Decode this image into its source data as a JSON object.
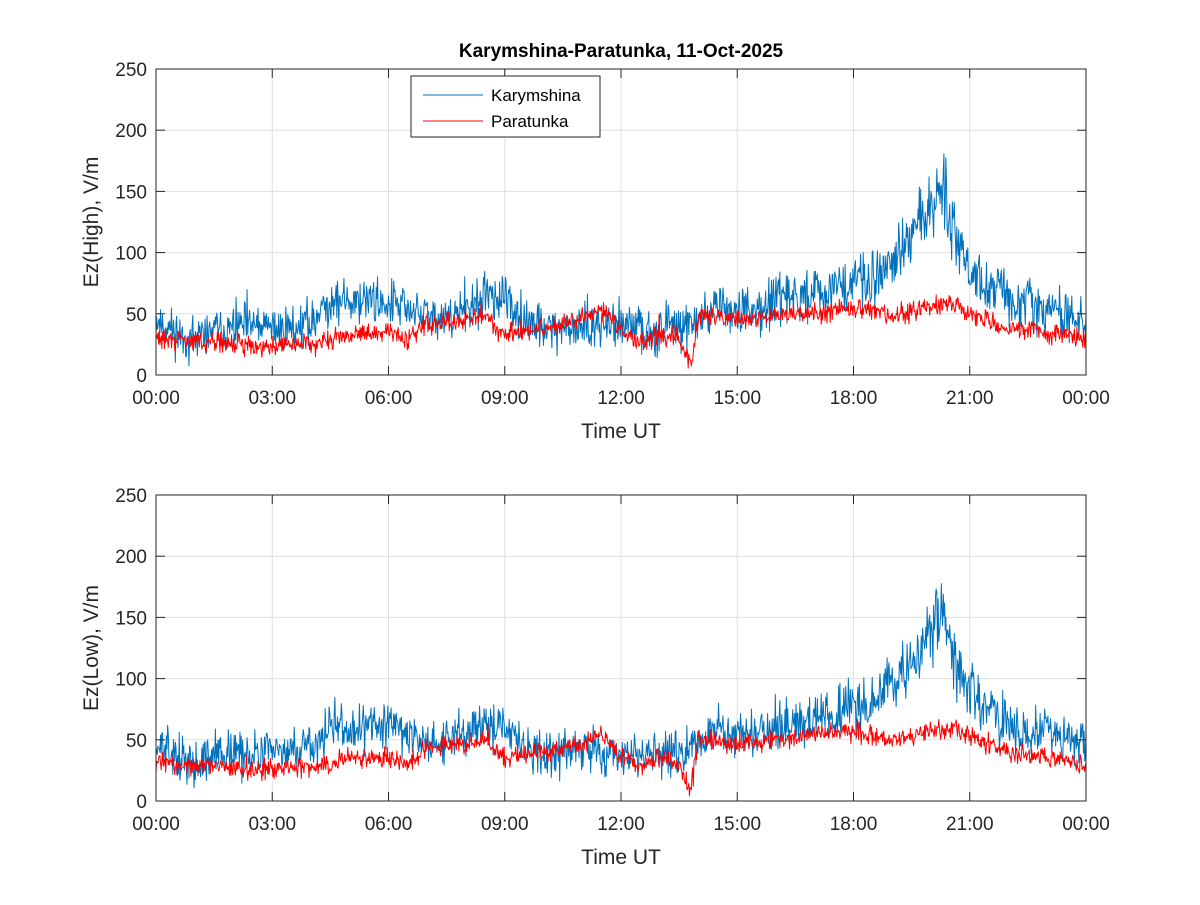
{
  "chart_data": [
    {
      "type": "line",
      "title": "Karymshina-Paratunka, 11-Oct-2025",
      "xlabel": "Time UT",
      "ylabel": "Ez(High), V/m",
      "xlim_hours": [
        0,
        24
      ],
      "ylim": [
        0,
        250
      ],
      "xticks": [
        "00:00",
        "03:00",
        "06:00",
        "09:00",
        "12:00",
        "15:00",
        "18:00",
        "21:00",
        "00:00"
      ],
      "yticks": [
        "0",
        "50",
        "100",
        "150",
        "200",
        "250"
      ],
      "grid": true,
      "legend_position": "top-left",
      "series": [
        {
          "name": "Karymshina",
          "color": "#0072bd",
          "noise": 9,
          "seed": 11,
          "anchors_h": [
            0,
            0.5,
            1,
            1.5,
            2,
            3,
            4,
            4.5,
            5,
            5.5,
            6,
            7,
            8,
            8.5,
            9,
            9.5,
            10,
            11,
            12,
            13,
            14,
            14.5,
            15,
            16,
            16.5,
            17,
            18,
            18.5,
            19,
            19.5,
            20,
            20.3,
            20.5,
            21,
            21.5,
            22,
            23,
            24
          ],
          "anchors_v": [
            45,
            35,
            28,
            38,
            40,
            38,
            42,
            62,
            60,
            62,
            60,
            48,
            52,
            65,
            60,
            45,
            38,
            40,
            40,
            38,
            45,
            58,
            52,
            60,
            62,
            68,
            75,
            80,
            95,
            110,
            140,
            160,
            125,
            88,
            75,
            60,
            55,
            45
          ]
        },
        {
          "name": "Paratunka",
          "color": "#ff0000",
          "noise": 4,
          "seed": 29,
          "anchors_h": [
            0,
            1,
            2,
            3,
            4,
            5,
            6,
            6.5,
            7,
            8,
            8.5,
            9,
            10,
            11,
            11.5,
            12,
            12.5,
            13,
            13.5,
            13.8,
            14,
            15,
            16,
            17,
            18,
            19,
            20,
            20.5,
            21,
            22,
            23,
            24
          ],
          "anchors_v": [
            30,
            28,
            25,
            24,
            26,
            32,
            35,
            30,
            42,
            45,
            48,
            32,
            38,
            45,
            55,
            35,
            28,
            35,
            30,
            8,
            50,
            45,
            48,
            52,
            55,
            48,
            55,
            58,
            50,
            38,
            35,
            28
          ]
        }
      ]
    },
    {
      "type": "line",
      "title": "",
      "xlabel": "Time UT",
      "ylabel": "Ez(Low), V/m",
      "xlim_hours": [
        0,
        24
      ],
      "ylim": [
        0,
        250
      ],
      "xticks": [
        "00:00",
        "03:00",
        "06:00",
        "09:00",
        "12:00",
        "15:00",
        "18:00",
        "21:00",
        "00:00"
      ],
      "yticks": [
        "0",
        "50",
        "100",
        "150",
        "200",
        "250"
      ],
      "grid": true,
      "series": [
        {
          "name": "Karymshina",
          "color": "#0072bd",
          "noise": 9,
          "seed": 13,
          "anchors_h": [
            0,
            0.5,
            1,
            1.5,
            2,
            3,
            4,
            4.5,
            5,
            5.5,
            6,
            7,
            8,
            8.5,
            9,
            9.5,
            10,
            11,
            12,
            13,
            14,
            14.5,
            15,
            16,
            16.5,
            17,
            18,
            18.5,
            19,
            19.5,
            20,
            20.3,
            20.5,
            21,
            21.5,
            22,
            23,
            24
          ],
          "anchors_v": [
            45,
            35,
            28,
            38,
            40,
            38,
            42,
            62,
            60,
            62,
            60,
            48,
            52,
            65,
            60,
            45,
            38,
            40,
            40,
            38,
            45,
            58,
            52,
            60,
            62,
            68,
            75,
            80,
            95,
            110,
            140,
            160,
            125,
            88,
            75,
            60,
            55,
            45
          ]
        },
        {
          "name": "Paratunka",
          "color": "#ff0000",
          "noise": 4,
          "seed": 31,
          "anchors_h": [
            0,
            1,
            2,
            3,
            4,
            5,
            6,
            6.5,
            7,
            8,
            8.5,
            9,
            10,
            11,
            11.5,
            12,
            12.5,
            13,
            13.5,
            13.8,
            14,
            15,
            16,
            17,
            18,
            19,
            20,
            20.5,
            21,
            22,
            23,
            24
          ],
          "anchors_v": [
            32,
            29,
            27,
            26,
            28,
            34,
            36,
            30,
            44,
            46,
            50,
            34,
            40,
            46,
            56,
            36,
            28,
            36,
            30,
            8,
            52,
            46,
            50,
            54,
            57,
            50,
            57,
            60,
            52,
            40,
            36,
            30
          ]
        }
      ]
    }
  ]
}
